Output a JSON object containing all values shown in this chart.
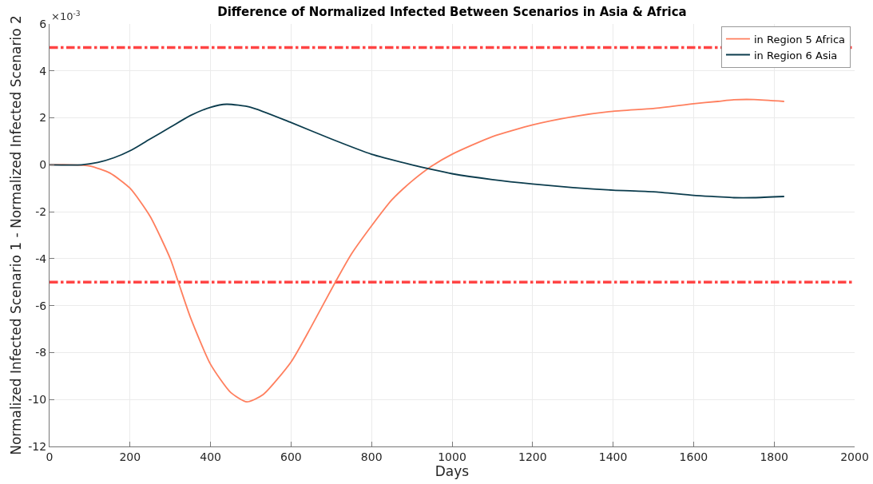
{
  "chart_data": {
    "type": "line",
    "title": "Difference of Normalized Infected Between Scenarios in Asia & Africa",
    "xlabel": "Days",
    "ylabel": "Normalized Infected Scenario 1 - Normalized Infected Scenario 2",
    "annotations": [
      "×10$^{-3}$"
    ],
    "xlim": [
      0,
      2000
    ],
    "xticks": [
      0,
      200,
      400,
      600,
      800,
      1000,
      1200,
      1400,
      1600,
      1800,
      2000
    ],
    "ylim": [
      -12,
      6
    ],
    "yticks": [
      -12,
      -10,
      -8,
      -6,
      -4,
      -2,
      0,
      2,
      4,
      6
    ],
    "grid": true,
    "legend": "top right",
    "marker": "none",
    "line_style": "solid",
    "series": [
      {
        "name": "in Region 5 Africa",
        "color": "#ff7f5e",
        "x": [
          0,
          50,
          100,
          150,
          200,
          250,
          300,
          320,
          350,
          400,
          450,
          490,
          530,
          600,
          650,
          710,
          750,
          800,
          850,
          900,
          950,
          1000,
          1100,
          1200,
          1300,
          1400,
          1500,
          1600,
          1660,
          1700,
          1750,
          1825
        ],
        "values": [
          0,
          0,
          -0.05,
          -0.35,
          -1.0,
          -2.2,
          -4.0,
          -5.0,
          -6.5,
          -8.5,
          -9.7,
          -10.1,
          -9.8,
          -8.4,
          -6.9,
          -5.0,
          -3.8,
          -2.6,
          -1.5,
          -0.7,
          -0.05,
          0.45,
          1.2,
          1.7,
          2.05,
          2.28,
          2.4,
          2.6,
          2.7,
          2.77,
          2.78,
          2.7
        ]
      },
      {
        "name": "in Region 6 Asia",
        "color": "#0b3c4d",
        "x": [
          0,
          80,
          120,
          160,
          200,
          250,
          300,
          350,
          400,
          440,
          500,
          600,
          700,
          800,
          900,
          950,
          1000,
          1100,
          1200,
          1300,
          1400,
          1500,
          1600,
          1660,
          1700,
          1750,
          1825
        ],
        "values": [
          0,
          0,
          0.1,
          0.3,
          0.6,
          1.1,
          1.6,
          2.1,
          2.45,
          2.58,
          2.45,
          1.8,
          1.1,
          0.45,
          0,
          -0.2,
          -0.38,
          -0.63,
          -0.82,
          -0.97,
          -1.08,
          -1.15,
          -1.3,
          -1.36,
          -1.4,
          -1.4,
          -1.35
        ]
      }
    ],
    "ref_lines": [
      {
        "axis": "y",
        "value": 5,
        "color": "#ff4444",
        "line_style": "dashdot"
      },
      {
        "axis": "y",
        "value": -5,
        "color": "#ff4444",
        "line_style": "dashdot"
      }
    ]
  }
}
